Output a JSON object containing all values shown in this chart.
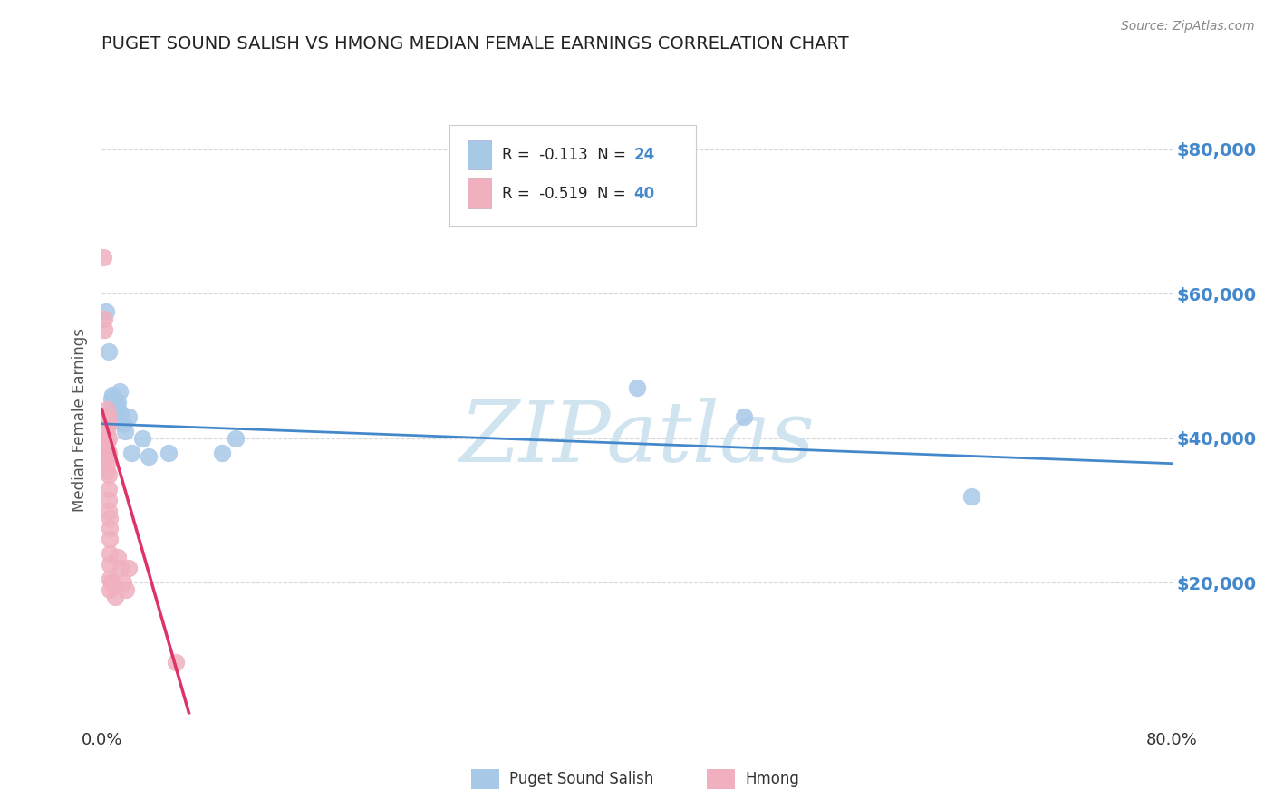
{
  "title": "PUGET SOUND SALISH VS HMONG MEDIAN FEMALE EARNINGS CORRELATION CHART",
  "source": "Source: ZipAtlas.com",
  "ylabel": "Median Female Earnings",
  "xlim": [
    0.0,
    0.8
  ],
  "ylim": [
    0,
    85000
  ],
  "yticks": [
    0,
    20000,
    40000,
    60000,
    80000
  ],
  "ytick_labels": [
    "",
    "$20,000",
    "$40,000",
    "$60,000",
    "$80,000"
  ],
  "blue_R": -0.113,
  "blue_N": 24,
  "pink_R": -0.519,
  "pink_N": 40,
  "blue_color": "#a8c8e8",
  "pink_color": "#f0b0c0",
  "blue_line_color": "#4488cc",
  "pink_line_color": "#dd3366",
  "watermark": "ZIPatlas",
  "watermark_color": "#d0e4f0",
  "blue_dots": [
    [
      0.003,
      57500
    ],
    [
      0.005,
      52000
    ],
    [
      0.006,
      43000
    ],
    [
      0.007,
      45500
    ],
    [
      0.008,
      46000
    ],
    [
      0.008,
      44500
    ],
    [
      0.009,
      43000
    ],
    [
      0.01,
      42500
    ],
    [
      0.011,
      44500
    ],
    [
      0.012,
      45000
    ],
    [
      0.013,
      46500
    ],
    [
      0.014,
      43500
    ],
    [
      0.016,
      42000
    ],
    [
      0.017,
      41000
    ],
    [
      0.02,
      43000
    ],
    [
      0.022,
      38000
    ],
    [
      0.03,
      40000
    ],
    [
      0.035,
      37500
    ],
    [
      0.05,
      38000
    ],
    [
      0.09,
      38000
    ],
    [
      0.1,
      40000
    ],
    [
      0.4,
      47000
    ],
    [
      0.48,
      43000
    ],
    [
      0.65,
      32000
    ]
  ],
  "pink_dots": [
    [
      0.001,
      65000
    ],
    [
      0.002,
      56500
    ],
    [
      0.002,
      55000
    ],
    [
      0.003,
      43000
    ],
    [
      0.003,
      42000
    ],
    [
      0.003,
      41500
    ],
    [
      0.003,
      40500
    ],
    [
      0.004,
      44000
    ],
    [
      0.004,
      42000
    ],
    [
      0.004,
      41000
    ],
    [
      0.004,
      39500
    ],
    [
      0.004,
      38500
    ],
    [
      0.004,
      37500
    ],
    [
      0.004,
      36500
    ],
    [
      0.004,
      35500
    ],
    [
      0.005,
      43000
    ],
    [
      0.005,
      42000
    ],
    [
      0.005,
      40000
    ],
    [
      0.005,
      38000
    ],
    [
      0.005,
      35000
    ],
    [
      0.005,
      33000
    ],
    [
      0.005,
      31500
    ],
    [
      0.005,
      30000
    ],
    [
      0.006,
      29000
    ],
    [
      0.006,
      27500
    ],
    [
      0.006,
      26000
    ],
    [
      0.006,
      24000
    ],
    [
      0.006,
      22500
    ],
    [
      0.006,
      20500
    ],
    [
      0.006,
      19000
    ],
    [
      0.007,
      20000
    ],
    [
      0.008,
      20000
    ],
    [
      0.009,
      19500
    ],
    [
      0.01,
      18000
    ],
    [
      0.012,
      23500
    ],
    [
      0.014,
      22000
    ],
    [
      0.016,
      20000
    ],
    [
      0.018,
      19000
    ],
    [
      0.02,
      22000
    ],
    [
      0.055,
      9000
    ]
  ],
  "blue_line_x": [
    0.0,
    0.8
  ],
  "blue_line_y": [
    42000,
    36500
  ],
  "pink_line_x": [
    0.0,
    0.065
  ],
  "pink_line_y": [
    44000,
    2000
  ],
  "background_color": "#ffffff",
  "grid_color": "#cccccc",
  "title_color": "#222222",
  "axis_label_color": "#555555",
  "tick_label_color": "#333333",
  "legend_num_color": "#4488cc"
}
